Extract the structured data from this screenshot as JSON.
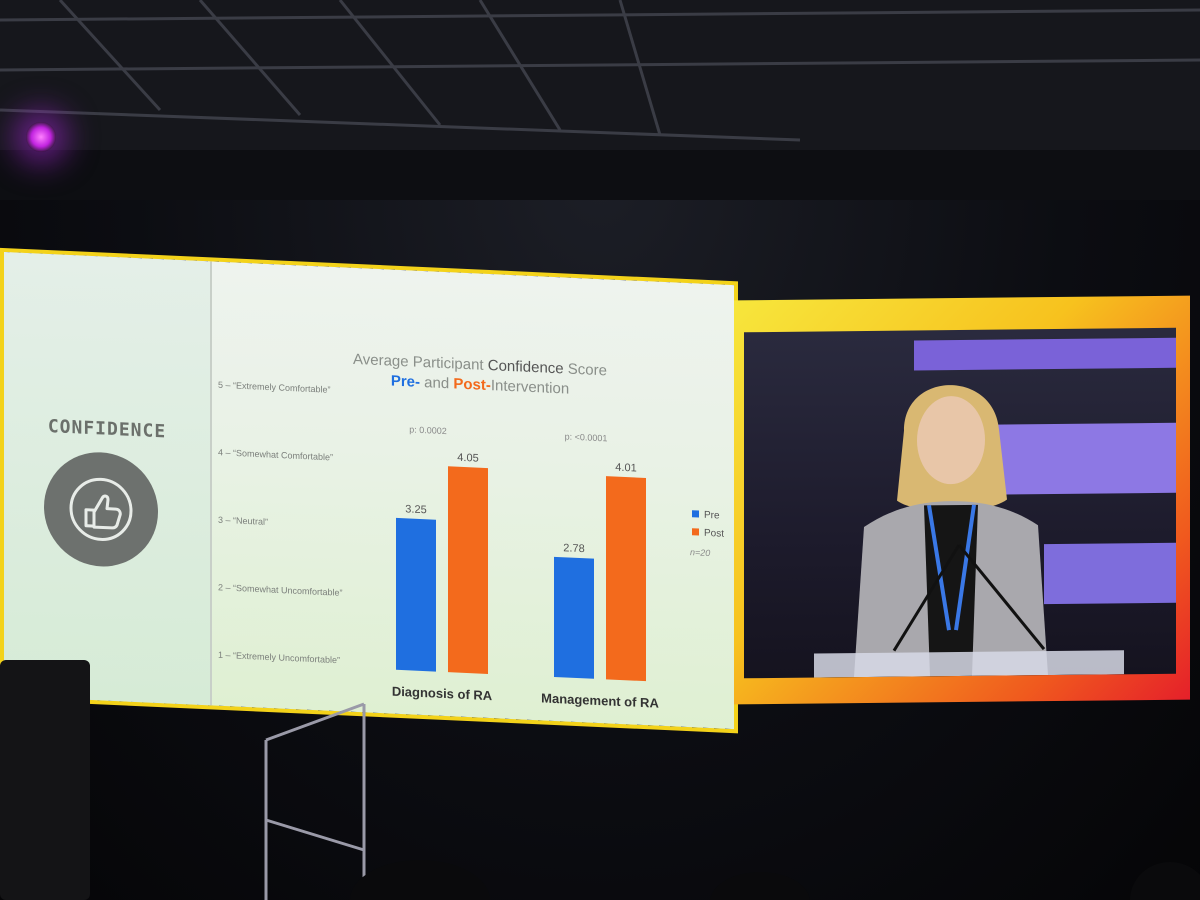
{
  "slide": {
    "sidebar_label": "CONFIDENCE",
    "icon": "thumbs-up-icon",
    "chart_title_line1_a": "Average Participant ",
    "chart_title_line1_b": "Confidence",
    "chart_title_line1_c": " Score",
    "chart_title_line2_pre": "Pre-",
    "chart_title_line2_mid": " and ",
    "chart_title_line2_post": "Post-",
    "chart_title_line2_end": "Intervention",
    "n_label": "n=20"
  },
  "chart_data": {
    "type": "bar",
    "categories": [
      "Diagnosis of RA",
      "Management of RA"
    ],
    "series": [
      {
        "name": "Pre",
        "values": [
          3.25,
          2.78
        ],
        "color": "#1f6fe0"
      },
      {
        "name": "Post",
        "values": [
          4.05,
          4.01
        ],
        "color": "#f36a1c"
      }
    ],
    "value_labels": [
      [
        "3.25",
        "2.78"
      ],
      [
        "4.05",
        "4.01"
      ]
    ],
    "p_values": [
      "p: 0.0002",
      "p: <0.0001"
    ],
    "ytick_labels": [
      "1 – “Extremely Uncomfortable”",
      "2 – “Somewhat Uncomfortable”",
      "3 – “Neutral”",
      "4 – “Somewhat Comfortable”",
      "5 – “Extremely Comfortable”"
    ],
    "yticks": [
      1,
      2,
      3,
      4,
      5
    ],
    "ylim": [
      1,
      5
    ],
    "legend_placement": "right"
  },
  "colors": {
    "frame_yellow": "#f3d21a",
    "frame_orange": "#f05a1e",
    "stage_purple": "#8c4fe0"
  }
}
